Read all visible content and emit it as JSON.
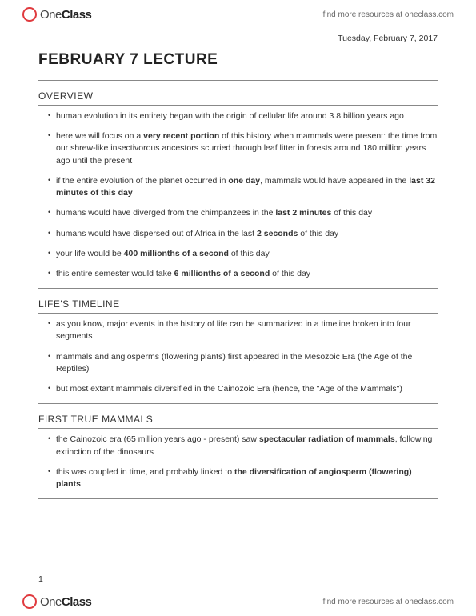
{
  "brand": {
    "one": "One",
    "class": "Class"
  },
  "find_link": "find more resources at oneclass.com",
  "date": "Tuesday, February 7, 2017",
  "title": "FEBRUARY 7 LECTURE",
  "page_number": "1",
  "sections": [
    {
      "heading": "OVERVIEW",
      "items": [
        [
          [
            "human evolution in its entirety began with the origin of cellular life around 3.8 billion years ago",
            false
          ]
        ],
        [
          [
            "here we will focus on a ",
            false
          ],
          [
            "very recent portion",
            true
          ],
          [
            " of this history when mammals were present: the time from our shrew-like insectivorous ancestors scurried through leaf litter in forests around 180 million years ago until the present",
            false
          ]
        ],
        [
          [
            "if the entire evolution of the planet occurred in ",
            false
          ],
          [
            "one day",
            true
          ],
          [
            ", mammals would have appeared in the ",
            false
          ],
          [
            "last 32 minutes of this day",
            true
          ]
        ],
        [
          [
            "humans would have diverged from the chimpanzees in the ",
            false
          ],
          [
            "last 2 minutes",
            true
          ],
          [
            " of this day",
            false
          ]
        ],
        [
          [
            "humans would have dispersed out of Africa in the last ",
            false
          ],
          [
            "2 seconds",
            true
          ],
          [
            " of this day",
            false
          ]
        ],
        [
          [
            "your life would be ",
            false
          ],
          [
            "400 millionths of a second",
            true
          ],
          [
            " of this day",
            false
          ]
        ],
        [
          [
            "this entire semester would take ",
            false
          ],
          [
            "6 millionths of a second",
            true
          ],
          [
            " of this day",
            false
          ]
        ]
      ]
    },
    {
      "heading": "LIFE'S TIMELINE",
      "items": [
        [
          [
            "as you know, major events in the history of life can be summarized in a timeline broken into four segments",
            false
          ]
        ],
        [
          [
            "mammals and angiosperms (flowering plants) first appeared in the Mesozoic Era (the Age of the Reptiles)",
            false
          ]
        ],
        [
          [
            "but most extant mammals diversified in the Cainozoic Era (hence, the \"Age of the Mammals\")",
            false
          ]
        ]
      ]
    },
    {
      "heading": "FIRST TRUE MAMMALS",
      "items": [
        [
          [
            "the Cainozoic era (65 million years ago - present) saw ",
            false
          ],
          [
            "spectacular radiation of mammals",
            true
          ],
          [
            ", following extinction of the dinosaurs",
            false
          ]
        ],
        [
          [
            "this was coupled in time, and probably linked to ",
            false
          ],
          [
            "the diversification of angiosperm (flowering) plants",
            true
          ]
        ]
      ]
    }
  ]
}
